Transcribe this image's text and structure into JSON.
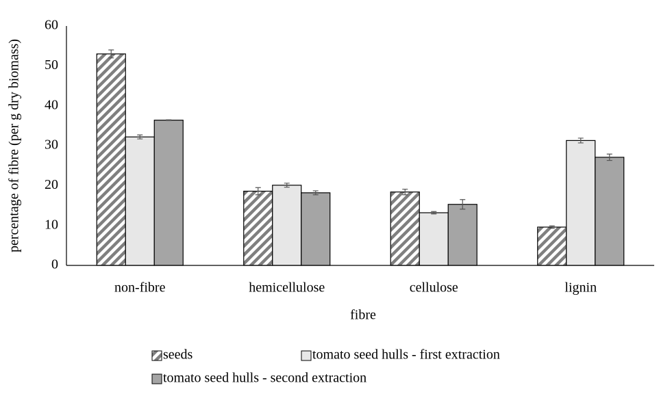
{
  "chart_data": {
    "type": "bar",
    "x_label": "fibre",
    "y_label": "percentage of fibre (per g dry biomass)",
    "categories": [
      "non-fibre",
      "hemicellulose",
      "cellulose",
      "lignin"
    ],
    "series": [
      {
        "name": "seeds",
        "color": "#7f7f7f",
        "pattern": "hatch",
        "values": [
          53,
          18.6,
          18.4,
          9.6
        ],
        "errors": [
          1.0,
          0.9,
          0.7,
          0.3
        ]
      },
      {
        "name": "tomato seed hulls - first extraction",
        "color": "#e7e7e7",
        "values": [
          32.2,
          20.1,
          13.2,
          31.3
        ],
        "errors": [
          0.5,
          0.5,
          0.3,
          0.6
        ]
      },
      {
        "name": "tomato seed hulls - second extraction",
        "color": "#a5a5a5",
        "values": [
          36.4,
          18.2,
          15.3,
          27.1
        ],
        "errors": [
          0.1,
          0.5,
          1.2,
          0.8
        ]
      }
    ],
    "ylim": [
      0,
      60
    ],
    "yticks": [
      0,
      10,
      20,
      30,
      40,
      50,
      60
    ],
    "grid": false,
    "legend": "bottom"
  }
}
